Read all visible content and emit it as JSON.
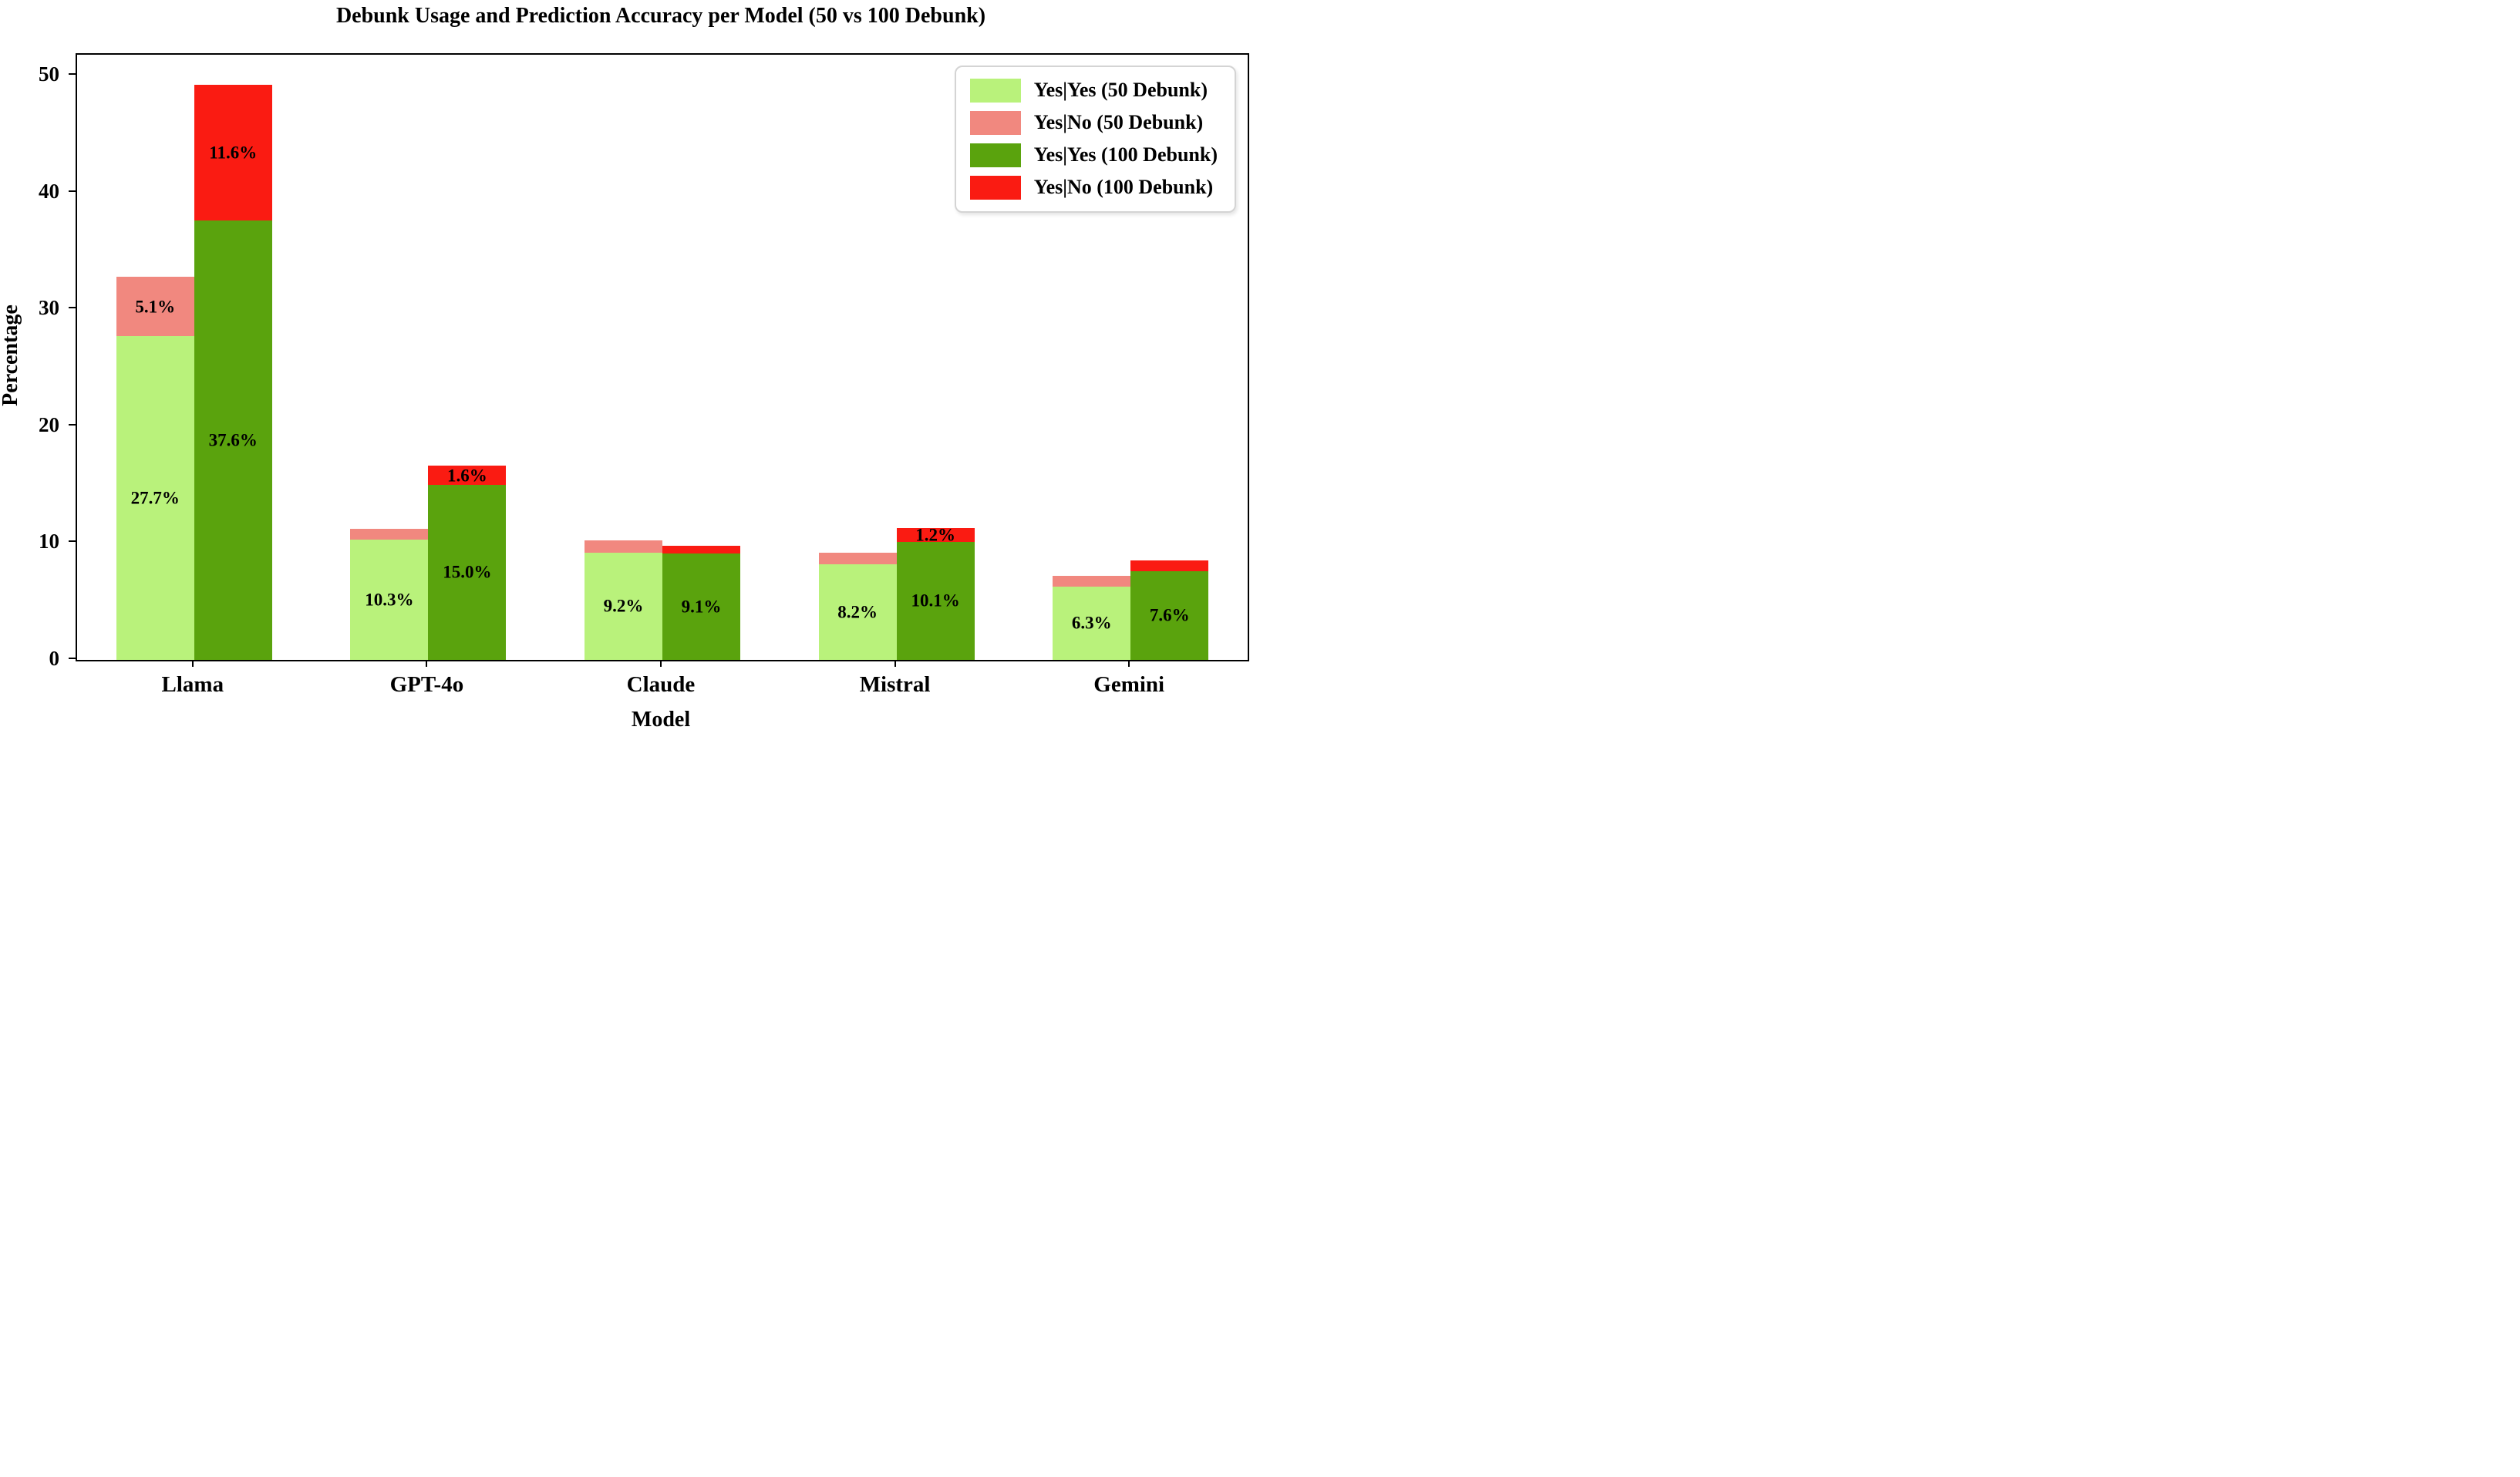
{
  "chart_data": {
    "type": "bar",
    "stacked": true,
    "grouped_pairs": [
      "50 Debunk",
      "100 Debunk"
    ],
    "title": "Debunk Usage and Prediction Accuracy per Model (50 vs 100 Debunk)",
    "xlabel": "Model",
    "ylabel": "Percentage",
    "categories": [
      "Llama",
      "GPT-4o",
      "Claude",
      "Mistral",
      "Gemini"
    ],
    "ylim": [
      0,
      51.8
    ],
    "yticks": [
      0,
      10,
      20,
      30,
      40,
      50
    ],
    "grid": false,
    "legend_position": "upper-right",
    "axis_color": "#000000",
    "series": [
      {
        "name": "Yes|Yes (50 Debunk)",
        "bar": "50 Debunk",
        "color": "#b9f27b",
        "values": [
          27.7,
          10.3,
          9.2,
          8.2,
          6.3
        ],
        "labels": [
          "27.7%",
          "10.3%",
          "9.2%",
          "8.2%",
          "6.3%"
        ]
      },
      {
        "name": "Yes|No (50 Debunk)",
        "bar": "50 Debunk",
        "color": "#f1887f",
        "values": [
          5.1,
          0.9,
          1.0,
          1.0,
          0.9
        ],
        "labels": [
          "5.1%",
          "",
          "",
          "",
          ""
        ]
      },
      {
        "name": "Yes|Yes (100 Debunk)",
        "bar": "100 Debunk",
        "color": "#5aa30d",
        "values": [
          37.6,
          15.0,
          9.1,
          10.1,
          7.6
        ],
        "labels": [
          "37.6%",
          "15.0%",
          "9.1%",
          "10.1%",
          "7.6%"
        ]
      },
      {
        "name": "Yes|No (100 Debunk)",
        "bar": "100 Debunk",
        "color": "#fa1b12",
        "values": [
          11.6,
          1.6,
          0.7,
          1.2,
          0.9
        ],
        "labels": [
          "11.6%",
          "1.6%",
          "",
          "1.2%",
          ""
        ]
      }
    ]
  }
}
